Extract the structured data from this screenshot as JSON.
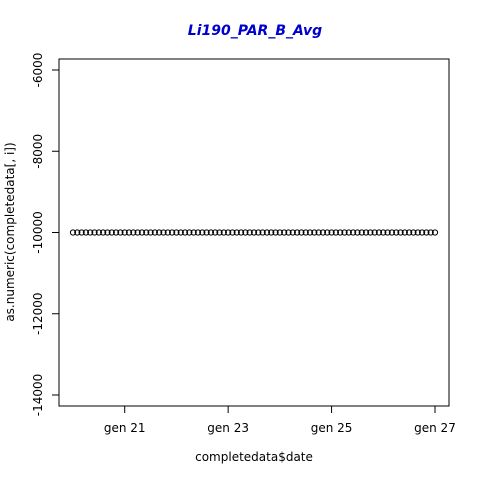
{
  "chart_data": {
    "type": "scatter",
    "title": "Li190_PAR_B_Avg",
    "xlabel": "completedata$date",
    "ylabel": "as.numeric(completedata[, i])",
    "xlim": [
      "2000-01-20T00:00",
      "2000-01-27T00:00"
    ],
    "ylim": [
      -14000,
      -6000
    ],
    "x_ticks": [
      {
        "value": "2000-01-21T00:00",
        "label": "gen 21"
      },
      {
        "value": "2000-01-23T00:00",
        "label": "gen 23"
      },
      {
        "value": "2000-01-25T00:00",
        "label": "gen 25"
      },
      {
        "value": "2000-01-27T00:00",
        "label": "gen 27"
      }
    ],
    "y_ticks": [
      {
        "value": -14000,
        "label": "-14000"
      },
      {
        "value": -12000,
        "label": "-12000"
      },
      {
        "value": -10000,
        "label": "-10000"
      },
      {
        "value": -8000,
        "label": "-8000"
      },
      {
        "value": -6000,
        "label": "-6000"
      }
    ],
    "series": [
      {
        "x_start": "2000-01-20T00:00",
        "x_end": "2000-01-27T00:00",
        "y_constant": -10000,
        "point_interval_hours": 2
      }
    ],
    "grid": false,
    "legend": "none",
    "colors": {
      "title": "#0000cd",
      "points": "#000000",
      "axes": "#000000"
    }
  }
}
